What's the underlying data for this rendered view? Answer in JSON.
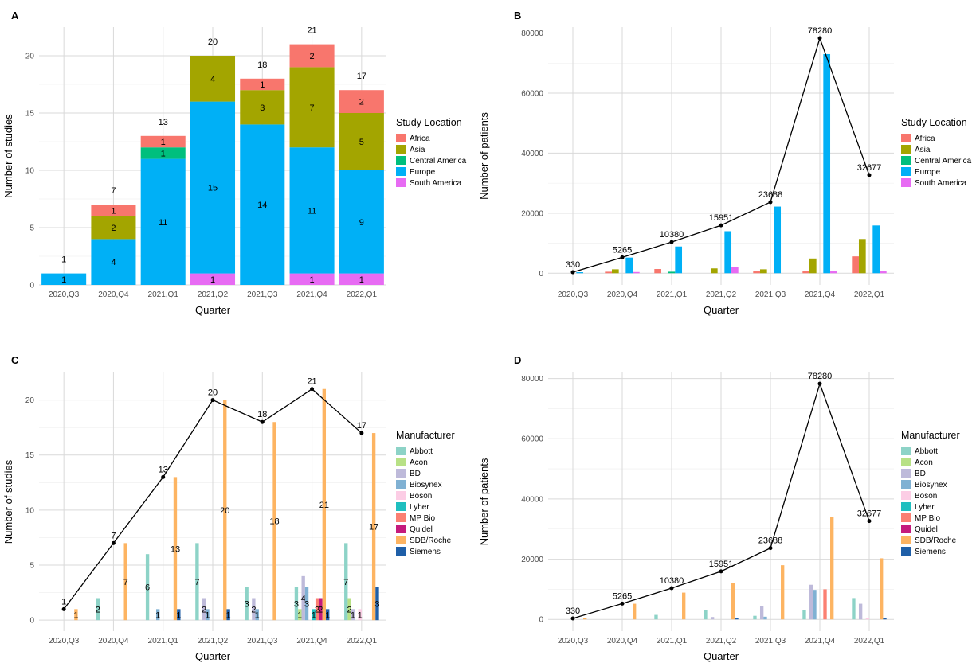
{
  "chart_data": [
    {
      "panel": "A",
      "type": "bar",
      "stacked": true,
      "categories": [
        "2020,Q3",
        "2020,Q4",
        "2021,Q1",
        "2021,Q2",
        "2021,Q3",
        "2021,Q4",
        "2022,Q1"
      ],
      "xlabel": "Quarter",
      "ylabel": "Number of studies",
      "ylim": [
        0,
        22.5
      ],
      "yticks": [
        0,
        5,
        10,
        15,
        20
      ],
      "legend_title": "Study Location",
      "legend_position": "right",
      "series": [
        {
          "name": "South America",
          "color": "#e76bf3",
          "values": [
            0,
            0,
            0,
            1,
            0,
            1,
            1
          ]
        },
        {
          "name": "Europe",
          "color": "#00b0f6",
          "values": [
            1,
            4,
            11,
            15,
            14,
            11,
            9
          ]
        },
        {
          "name": "Central America",
          "color": "#00bf7d",
          "values": [
            0,
            0,
            1,
            0,
            0,
            0,
            0
          ]
        },
        {
          "name": "Asia",
          "color": "#a3a500",
          "values": [
            0,
            2,
            0,
            4,
            3,
            7,
            5
          ]
        },
        {
          "name": "Africa",
          "color": "#f8766d",
          "values": [
            0,
            1,
            1,
            0,
            1,
            2,
            2
          ]
        }
      ],
      "legend_order": [
        "Africa",
        "Asia",
        "Central America",
        "Europe",
        "South America"
      ],
      "totals": [
        1,
        7,
        13,
        20,
        18,
        21,
        17
      ]
    },
    {
      "panel": "B",
      "type": "bar",
      "stacked": false,
      "categories": [
        "2020,Q3",
        "2020,Q4",
        "2021,Q1",
        "2021,Q2",
        "2021,Q3",
        "2021,Q4",
        "2022,Q1"
      ],
      "xlabel": "Quarter",
      "ylabel": "Number of patients",
      "ylim": [
        -3900,
        82000
      ],
      "yticks": [
        0,
        20000,
        40000,
        60000,
        80000
      ],
      "legend_title": "Study Location",
      "legend_position": "right",
      "series": [
        {
          "name": "Africa",
          "color": "#f8766d",
          "values": [
            0,
            500,
            1400,
            0,
            600,
            600,
            5600
          ]
        },
        {
          "name": "Asia",
          "color": "#a3a500",
          "values": [
            0,
            1300,
            0,
            1600,
            1300,
            4900,
            11400
          ]
        },
        {
          "name": "Central America",
          "color": "#00bf7d",
          "values": [
            0,
            0,
            500,
            0,
            0,
            0,
            0
          ]
        },
        {
          "name": "Europe",
          "color": "#00b0f6",
          "values": [
            330,
            5200,
            8900,
            14000,
            22200,
            73000,
            15900
          ]
        },
        {
          "name": "South America",
          "color": "#e76bf3",
          "values": [
            0,
            400,
            0,
            2100,
            0,
            600,
            600
          ]
        }
      ],
      "line": {
        "values": [
          330,
          5265,
          10380,
          15951,
          23688,
          78280,
          32677
        ],
        "labels": [
          "330",
          "5265",
          "10380",
          "15951",
          "23688",
          "78280",
          "32677"
        ]
      }
    },
    {
      "panel": "C",
      "type": "bar",
      "stacked": false,
      "categories": [
        "2020,Q3",
        "2020,Q4",
        "2021,Q1",
        "2021,Q2",
        "2021,Q3",
        "2021,Q4",
        "2022,Q1"
      ],
      "xlabel": "Quarter",
      "ylabel": "Number of studies",
      "ylim": [
        -1,
        22.5
      ],
      "yticks": [
        0,
        5,
        10,
        15,
        20
      ],
      "legend_title": "Manufacturer",
      "legend_position": "right",
      "series": [
        {
          "name": "Abbott",
          "color": "#8dd3c7",
          "values": [
            0,
            2,
            6,
            7,
            3,
            3,
            7
          ]
        },
        {
          "name": "Acon",
          "color": "#b8e186",
          "values": [
            0,
            0,
            0,
            0,
            0,
            1,
            2
          ]
        },
        {
          "name": "BD",
          "color": "#bebada",
          "values": [
            0,
            0,
            0,
            2,
            2,
            4,
            1
          ]
        },
        {
          "name": "Biosynex",
          "color": "#80b1d3",
          "values": [
            0,
            0,
            1,
            1,
            1,
            3,
            0
          ]
        },
        {
          "name": "Boson",
          "color": "#fccde5",
          "values": [
            0,
            0,
            0,
            0,
            0,
            0,
            1
          ]
        },
        {
          "name": "Lyher",
          "color": "#1fbfbf",
          "values": [
            0,
            0,
            0,
            0,
            0,
            1,
            0
          ]
        },
        {
          "name": "MP Bio",
          "color": "#fb8072",
          "values": [
            0,
            0,
            0,
            0,
            0,
            2,
            0
          ]
        },
        {
          "name": "Quidel",
          "color": "#c51b7d",
          "values": [
            0,
            0,
            0,
            0,
            0,
            2,
            0
          ]
        },
        {
          "name": "SDB/Roche",
          "color": "#fdb462",
          "values": [
            1,
            7,
            13,
            20,
            18,
            21,
            17
          ]
        },
        {
          "name": "Siemens",
          "color": "#1f5fa8",
          "values": [
            0,
            0,
            1,
            1,
            0,
            1,
            3
          ]
        }
      ],
      "line": {
        "values": [
          1,
          7,
          13,
          20,
          18,
          21,
          17
        ],
        "labels": [
          "1",
          "7",
          "13",
          "20",
          "18",
          "21",
          "17"
        ]
      }
    },
    {
      "panel": "D",
      "type": "bar",
      "stacked": false,
      "categories": [
        "2020,Q3",
        "2020,Q4",
        "2021,Q1",
        "2021,Q2",
        "2021,Q3",
        "2021,Q4",
        "2022,Q1"
      ],
      "xlabel": "Quarter",
      "ylabel": "Number of patients",
      "ylim": [
        -3900,
        82000
      ],
      "yticks": [
        0,
        20000,
        40000,
        60000,
        80000
      ],
      "legend_title": "Manufacturer",
      "legend_position": "right",
      "series": [
        {
          "name": "Abbott",
          "color": "#8dd3c7",
          "values": [
            0,
            0,
            1500,
            3000,
            1200,
            3000,
            7100
          ]
        },
        {
          "name": "Acon",
          "color": "#b8e186",
          "values": [
            0,
            0,
            0,
            0,
            0,
            0,
            0
          ]
        },
        {
          "name": "BD",
          "color": "#bebada",
          "values": [
            0,
            0,
            0,
            800,
            4400,
            11500,
            5200
          ]
        },
        {
          "name": "Biosynex",
          "color": "#80b1d3",
          "values": [
            0,
            0,
            0,
            0,
            900,
            9800,
            0
          ]
        },
        {
          "name": "Boson",
          "color": "#fccde5",
          "values": [
            0,
            0,
            0,
            0,
            0,
            0,
            500
          ]
        },
        {
          "name": "Lyher",
          "color": "#1fbfbf",
          "values": [
            0,
            0,
            0,
            0,
            0,
            0,
            0
          ]
        },
        {
          "name": "MP Bio",
          "color": "#fb8072",
          "values": [
            0,
            0,
            0,
            0,
            0,
            10000,
            0
          ]
        },
        {
          "name": "Quidel",
          "color": "#c51b7d",
          "values": [
            0,
            0,
            0,
            0,
            0,
            0,
            0
          ]
        },
        {
          "name": "SDB/Roche",
          "color": "#fdb462",
          "values": [
            330,
            5200,
            8900,
            12000,
            18000,
            34000,
            20300
          ]
        },
        {
          "name": "Siemens",
          "color": "#1f5fa8",
          "values": [
            0,
            0,
            0,
            400,
            0,
            0,
            500
          ]
        }
      ],
      "line": {
        "values": [
          330,
          5265,
          10380,
          15951,
          23688,
          78280,
          32677
        ],
        "labels": [
          "330",
          "5265",
          "10380",
          "15951",
          "23688",
          "78280",
          "32677"
        ]
      }
    }
  ]
}
